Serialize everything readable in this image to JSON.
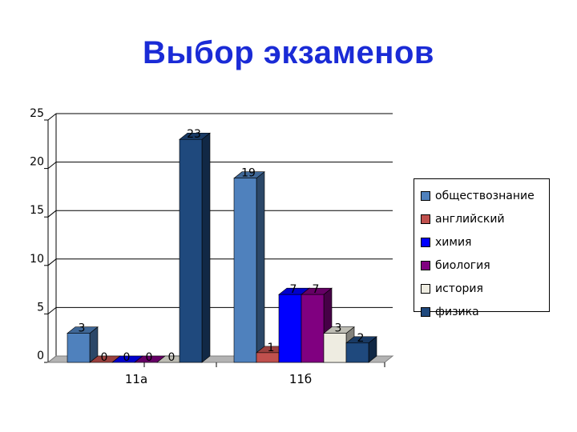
{
  "title": "Выбор экзаменов",
  "chart_data": {
    "type": "bar",
    "categories": [
      "11а",
      "11б"
    ],
    "series": [
      {
        "name": "обществознание",
        "color": "#4f81bd",
        "values": [
          3,
          19
        ]
      },
      {
        "name": "английский",
        "color": "#c0504d",
        "values": [
          0,
          1
        ]
      },
      {
        "name": "химия",
        "color": "#0000ff",
        "values": [
          0,
          7
        ]
      },
      {
        "name": "биология",
        "color": "#800080",
        "values": [
          0,
          7
        ]
      },
      {
        "name": "история",
        "color": "#eeece1",
        "values": [
          0,
          3
        ]
      },
      {
        "name": "физика",
        "color": "#1f497d",
        "values": [
          23,
          2
        ]
      }
    ],
    "ylim": [
      0,
      25
    ],
    "yticks": [
      "0",
      "5",
      "10",
      "15",
      "20",
      "25"
    ],
    "grid": true,
    "legend": "right",
    "style": "3d"
  }
}
